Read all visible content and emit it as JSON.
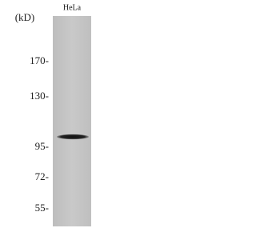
{
  "header": {
    "unit": "(kD)",
    "lane": "HeLa"
  },
  "markers": [
    "170-",
    "130-",
    "95-",
    "72-",
    "55-"
  ]
}
